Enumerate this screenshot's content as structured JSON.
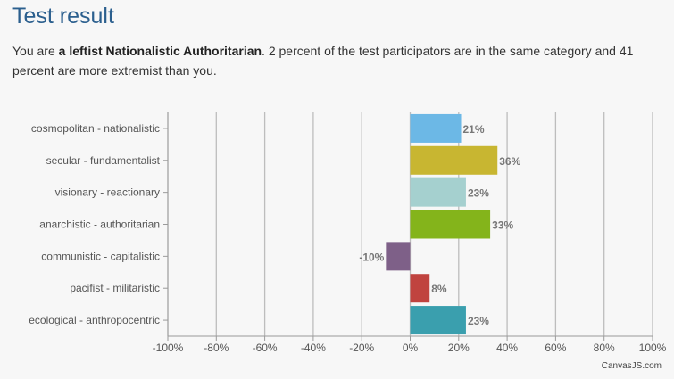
{
  "page": {
    "title": "Test result",
    "summary_pre": "You are ",
    "summary_bold": "a leftist Nationalistic Authoritarian",
    "summary_post": ". 2 percent of the test participators are in the same category and 41 percent are more extremist than you.",
    "credit": "CanvasJS.com"
  },
  "chart_data": {
    "type": "bar",
    "orientation": "horizontal",
    "categories": [
      "cosmopolitan - nationalistic",
      "secular - fundamentalist",
      "visionary - reactionary",
      "anarchistic - authoritarian",
      "communistic - capitalistic",
      "pacifist - militaristic",
      "ecological - anthropocentric"
    ],
    "values": [
      21,
      36,
      23,
      33,
      -10,
      8,
      23
    ],
    "data_labels": [
      "21%",
      "36%",
      "23%",
      "33%",
      "-10%",
      "8%",
      "23%"
    ],
    "colors": [
      "#6cb8e6",
      "#c8b631",
      "#a5d0cf",
      "#84b41b",
      "#7e6088",
      "#c0433f",
      "#3a9fae"
    ],
    "xlim": [
      -100,
      100
    ],
    "tick_labels": [
      "-100%",
      "-80%",
      "-60%",
      "-40%",
      "-20%",
      "0%",
      "20%",
      "40%",
      "60%",
      "80%",
      "100%"
    ],
    "grid": true,
    "title": "",
    "xlabel": "",
    "ylabel": ""
  }
}
